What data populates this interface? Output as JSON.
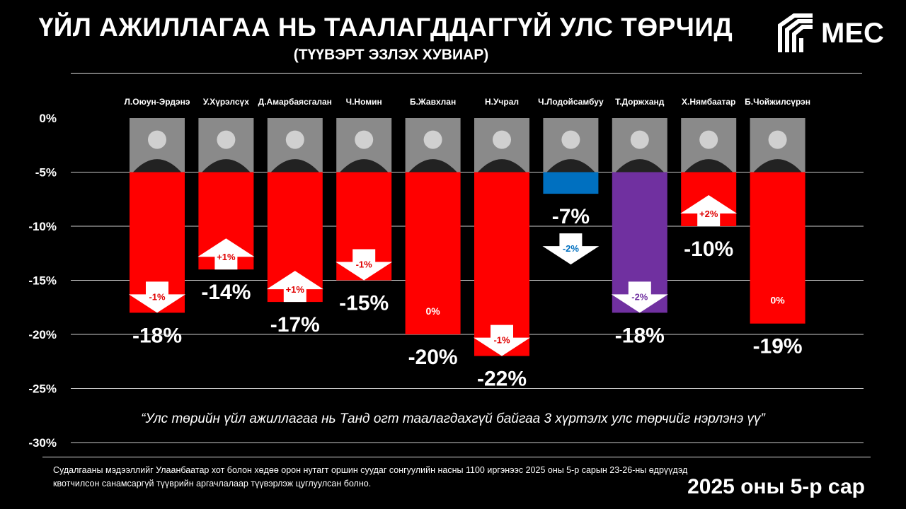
{
  "header": {
    "title": "ҮЙЛ АЖИЛЛАГАА НЬ ТААЛАГДДАГГҮЙ УЛС ТӨРЧИД",
    "subtitle": "(ТҮҮВЭРТ ЭЗЛЭХ ХУВИАР)",
    "logo": "MEC"
  },
  "chart_data": {
    "type": "bar",
    "ylim": [
      -30,
      0
    ],
    "yticks": [
      "0%",
      "-5%",
      "-10%",
      "-15%",
      "-20%",
      "-25%",
      "-30%"
    ],
    "grid": true,
    "categories": [
      "Л.Оюун-Эрдэнэ",
      "У.Хүрэлсүх",
      "Д.Амарбаясгалан",
      "Ч.Номин",
      "Б.Жавхлан",
      "Н.Учрал",
      "Ч.Лодойсамбуу",
      "Т.Доржханд",
      "Х.Нямбаатар",
      "Б.Чойжилсүрэн"
    ],
    "values": [
      -18,
      -14,
      -17,
      -15,
      -20,
      -22,
      -7,
      -18,
      -10,
      -19
    ],
    "value_labels": [
      "-18%",
      "-14%",
      "-17%",
      "-15%",
      "-20%",
      "-22%",
      "-7%",
      "-18%",
      "-10%",
      "-19%"
    ],
    "changes": [
      "-1%",
      "+1%",
      "+1%",
      "-1%",
      "0%",
      "-1%",
      "-2%",
      "-2%",
      "+2%",
      "0%"
    ],
    "change_directions": [
      "down",
      "up",
      "up",
      "down",
      "none",
      "down",
      "down",
      "down",
      "up",
      "none"
    ],
    "colors": [
      "#ff0000",
      "#ff0000",
      "#ff0000",
      "#ff0000",
      "#ff0000",
      "#ff0000",
      "#0070c0",
      "#7030a0",
      "#ff0000",
      "#ff0000"
    ]
  },
  "footer": {
    "quote": "“Улс төрийн үйл ажиллагаа нь Танд огт таалагдахгүй байгаа 3 хүртэлх улс төрчийг нэрлэнэ үү”",
    "note": "Судалгааны мэдээллийг Улаанбаатар хот болон хөдөө орон нутагт оршин суудаг сонгуулийн насны 1100 иргэнээс 2025 оны 5-р сарын 23-26-ны өдрүүдэд квотчилсон санамсаргүй түүврийн аргачлалаар түүвэрлэж цуглуулсан болно.",
    "date": "2025 оны 5-р сар"
  }
}
